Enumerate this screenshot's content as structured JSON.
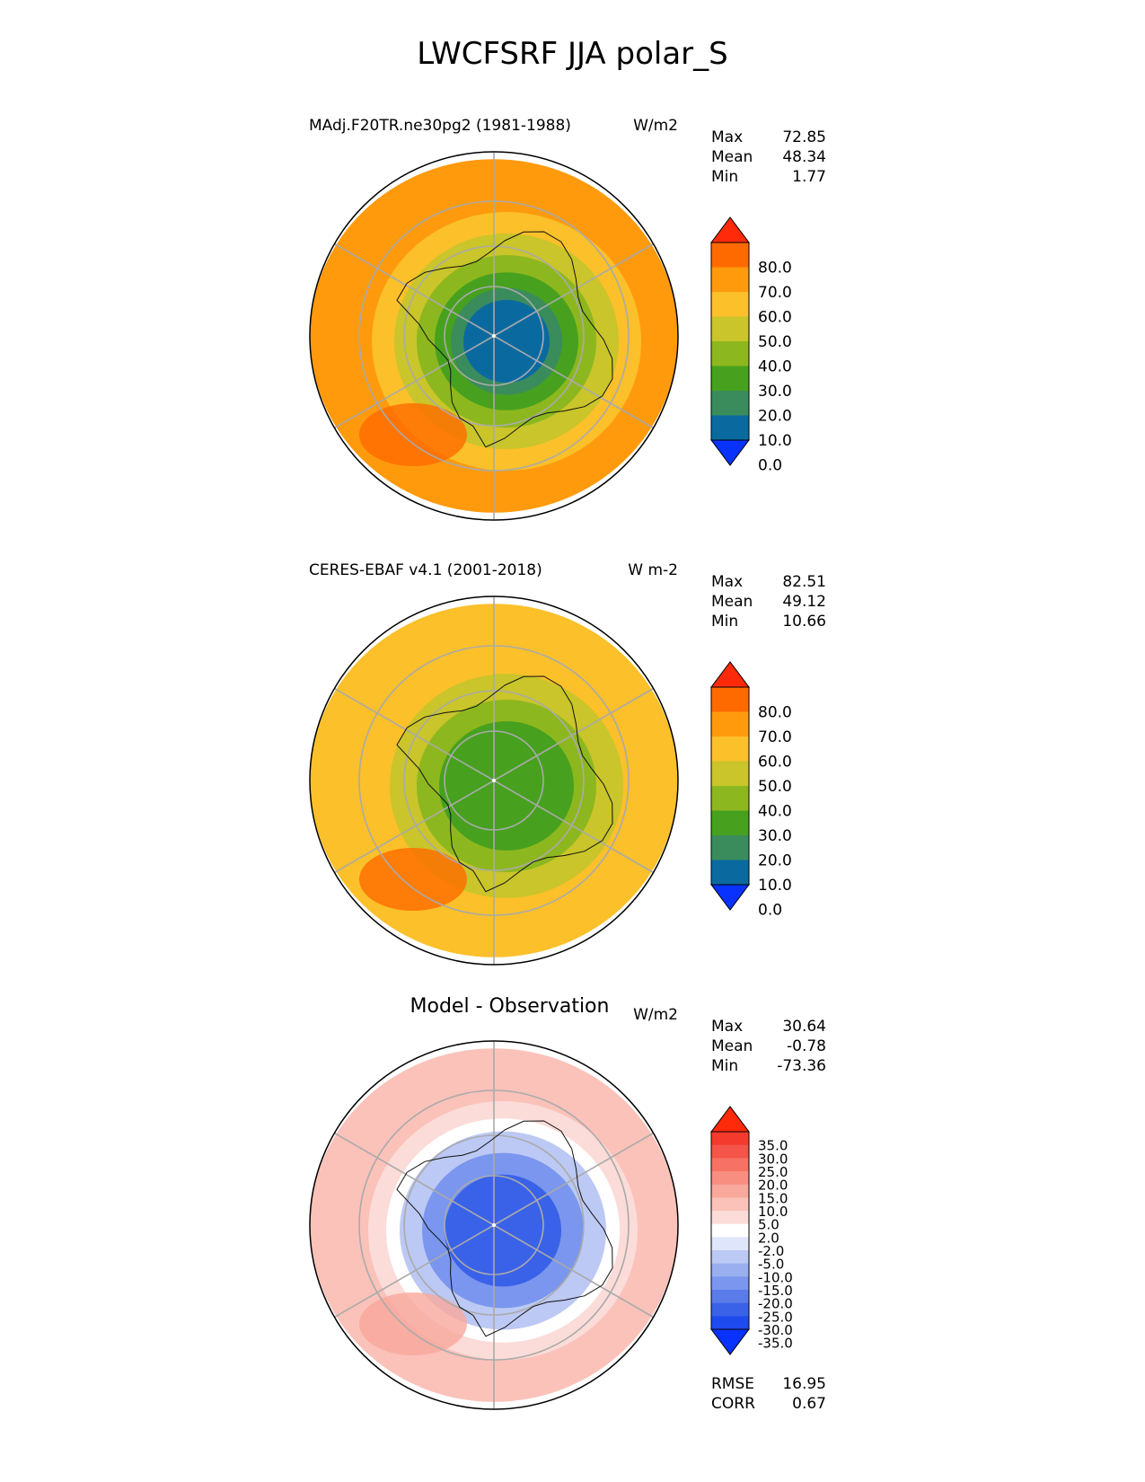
{
  "title": "LWCFSRF JJA polar_S",
  "panels": [
    {
      "left_title": "MAdj.F20TR.ne30pg2 (1981-1988)",
      "center_title": "",
      "unit": "W/m2",
      "stats": {
        "max_label": "Max",
        "max": "72.85",
        "mean_label": "Mean",
        "mean": "48.34",
        "min_label": "Min",
        "min": "1.77"
      }
    },
    {
      "left_title": "CERES-EBAF v4.1 (2001-2018)",
      "center_title": "",
      "unit": "W m-2",
      "stats": {
        "max_label": "Max",
        "max": "82.51",
        "mean_label": "Mean",
        "mean": "49.12",
        "min_label": "Min",
        "min": "10.66"
      }
    },
    {
      "left_title": "",
      "center_title": "Model - Observation",
      "unit": "W/m2",
      "stats": {
        "max_label": "Max",
        "max": "30.64",
        "mean_label": "Mean",
        "mean": "-0.78",
        "min_label": "Min",
        "min": "-73.36"
      }
    }
  ],
  "footer": {
    "rmse_label": "RMSE",
    "rmse": "16.95",
    "corr_label": "CORR",
    "corr": "0.67"
  },
  "chart_data": [
    {
      "type": "heatmap",
      "projection": "south-polar-stereographic",
      "title": "MAdj.F20TR.ne30pg2 (1981-1988)",
      "units": "W/m2",
      "colorbar": {
        "levels": [
          0,
          10,
          20,
          30,
          40,
          50,
          60,
          70,
          80
        ],
        "tick_labels": [
          "80.0",
          "70.0",
          "60.0",
          "50.0",
          "40.0",
          "30.0",
          "20.0",
          "10.0",
          "0.0"
        ],
        "colors": [
          "#0a32ff",
          "#0a6aa0",
          "#3a8c5c",
          "#47a11e",
          "#8db71e",
          "#c9c52a",
          "#fbc02a",
          "#ff9a0c",
          "#ff6a00",
          "#ff2a0a"
        ]
      },
      "stats": {
        "max": 72.85,
        "mean": 48.34,
        "min": 1.77
      }
    },
    {
      "type": "heatmap",
      "projection": "south-polar-stereographic",
      "title": "CERES-EBAF v4.1 (2001-2018)",
      "units": "W m-2",
      "colorbar": {
        "levels": [
          0,
          10,
          20,
          30,
          40,
          50,
          60,
          70,
          80
        ],
        "tick_labels": [
          "80.0",
          "70.0",
          "60.0",
          "50.0",
          "40.0",
          "30.0",
          "20.0",
          "10.0",
          "0.0"
        ],
        "colors": [
          "#0a32ff",
          "#0a6aa0",
          "#3a8c5c",
          "#47a11e",
          "#8db71e",
          "#c9c52a",
          "#fbc02a",
          "#ff9a0c",
          "#ff6a00",
          "#ff2a0a"
        ]
      },
      "stats": {
        "max": 82.51,
        "mean": 49.12,
        "min": 10.66
      }
    },
    {
      "type": "heatmap",
      "projection": "south-polar-stereographic",
      "title": "Model - Observation",
      "units": "W/m2",
      "colorbar": {
        "levels": [
          -35,
          -30,
          -25,
          -20,
          -15,
          -10,
          -5,
          -2,
          2,
          5,
          10,
          15,
          20,
          25,
          30,
          35
        ],
        "tick_labels": [
          "35.0",
          "30.0",
          "25.0",
          "20.0",
          "15.0",
          "10.0",
          "5.0",
          "2.0",
          "-2.0",
          "-5.0",
          "-10.0",
          "-15.0",
          "-20.0",
          "-25.0",
          "-30.0",
          "-35.0"
        ],
        "colors": [
          "#0a32ff",
          "#1d4bf0",
          "#3a62e8",
          "#5a7ce8",
          "#7a96ee",
          "#9aafef",
          "#bcc9f4",
          "#dfe5fa",
          "#ffffff",
          "#fbdcd8",
          "#fbc2ba",
          "#f9a89c",
          "#f88e80",
          "#f77264",
          "#f55448",
          "#f33a2c",
          "#ff2a0a"
        ]
      },
      "stats": {
        "max": 30.64,
        "mean": -0.78,
        "min": -73.36,
        "rmse": 16.95,
        "corr": 0.67
      }
    }
  ]
}
